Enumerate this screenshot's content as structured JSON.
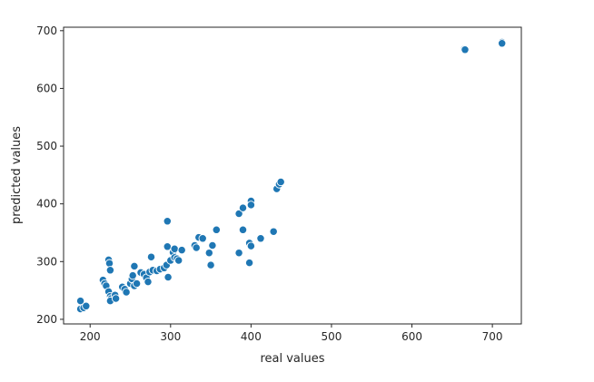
{
  "chart_data": {
    "type": "scatter",
    "title": "",
    "xlabel": "real values",
    "ylabel": "predicted values",
    "xlim": [
      167,
      736
    ],
    "ylim": [
      192,
      706
    ],
    "xticks": [
      200,
      300,
      400,
      500,
      600,
      700
    ],
    "yticks": [
      200,
      300,
      400,
      500,
      600,
      700
    ],
    "grid": false,
    "marker_color": "#1f77b4",
    "series": [
      {
        "points": [
          [
            188,
            232
          ],
          [
            188,
            218
          ],
          [
            192,
            220
          ],
          [
            195,
            223
          ],
          [
            216,
            268
          ],
          [
            218,
            262
          ],
          [
            220,
            258
          ],
          [
            223,
            303
          ],
          [
            224,
            297
          ],
          [
            225,
            285
          ],
          [
            223,
            248
          ],
          [
            225,
            240
          ],
          [
            226,
            236
          ],
          [
            225,
            232
          ],
          [
            231,
            242
          ],
          [
            232,
            236
          ],
          [
            240,
            256
          ],
          [
            243,
            252
          ],
          [
            245,
            247
          ],
          [
            250,
            262
          ],
          [
            252,
            270
          ],
          [
            253,
            276
          ],
          [
            255,
            292
          ],
          [
            255,
            258
          ],
          [
            258,
            262
          ],
          [
            263,
            281
          ],
          [
            267,
            278
          ],
          [
            270,
            272
          ],
          [
            272,
            265
          ],
          [
            274,
            282
          ],
          [
            276,
            308
          ],
          [
            278,
            285
          ],
          [
            283,
            284
          ],
          [
            287,
            287
          ],
          [
            292,
            289
          ],
          [
            295,
            294
          ],
          [
            297,
            273
          ],
          [
            296,
            370
          ],
          [
            296,
            326
          ],
          [
            300,
            302
          ],
          [
            303,
            316
          ],
          [
            305,
            322
          ],
          [
            305,
            307
          ],
          [
            308,
            305
          ],
          [
            310,
            302
          ],
          [
            314,
            320
          ],
          [
            330,
            328
          ],
          [
            332,
            324
          ],
          [
            335,
            342
          ],
          [
            340,
            340
          ],
          [
            348,
            315
          ],
          [
            350,
            294
          ],
          [
            352,
            328
          ],
          [
            357,
            355
          ],
          [
            385,
            383
          ],
          [
            385,
            315
          ],
          [
            390,
            393
          ],
          [
            390,
            355
          ],
          [
            398,
            332
          ],
          [
            398,
            298
          ],
          [
            400,
            327
          ],
          [
            400,
            405
          ],
          [
            400,
            398
          ],
          [
            412,
            340
          ],
          [
            428,
            352
          ],
          [
            432,
            426
          ],
          [
            435,
            434
          ],
          [
            437,
            438
          ],
          [
            665,
            668
          ],
          [
            666,
            667
          ],
          [
            712,
            680
          ],
          [
            712,
            678
          ]
        ]
      }
    ]
  }
}
